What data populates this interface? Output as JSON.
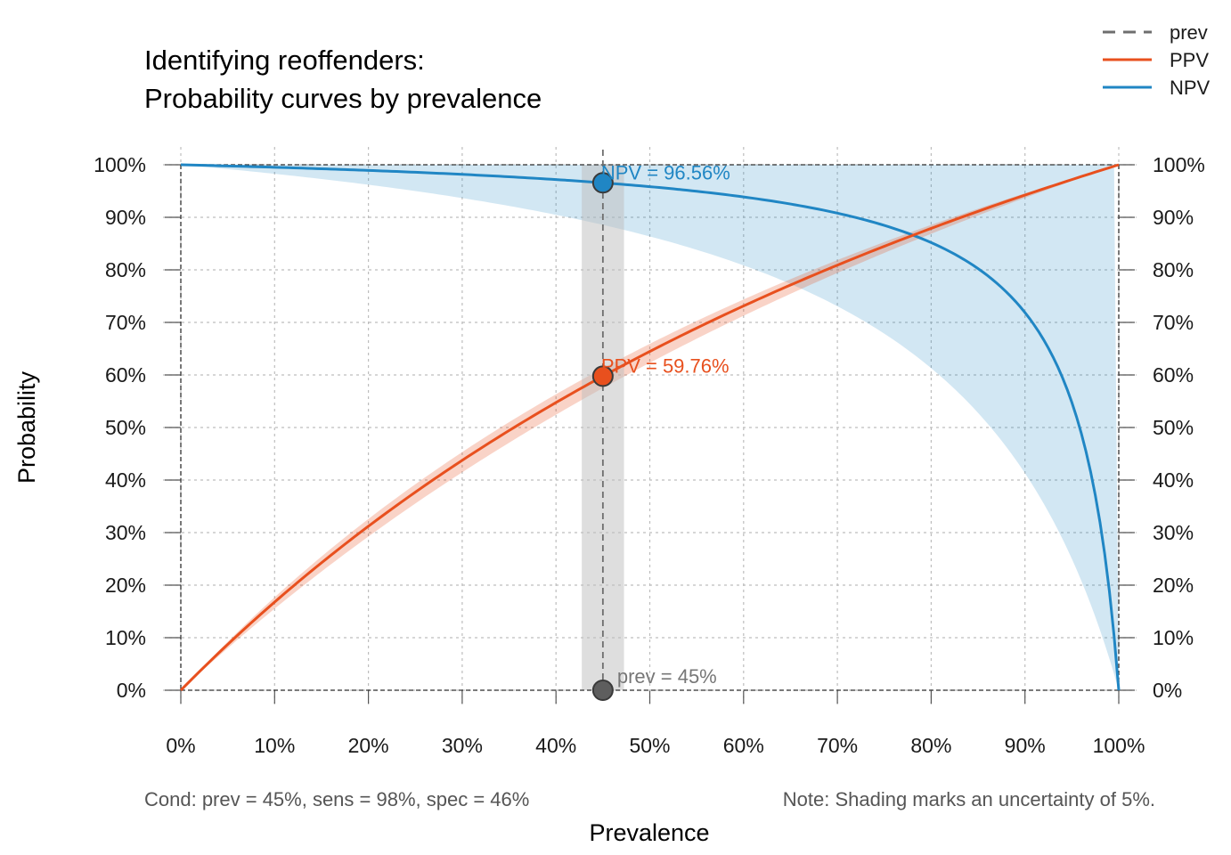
{
  "chart_data": {
    "type": "line",
    "title_line1": "Identifying reoffenders:",
    "title_line2": "Probability curves by prevalence",
    "xlabel": "Prevalence",
    "ylabel": "Probability",
    "xlim": [
      0,
      100
    ],
    "ylim": [
      0,
      100
    ],
    "x_ticks": [
      "0%",
      "10%",
      "20%",
      "30%",
      "40%",
      "50%",
      "60%",
      "70%",
      "80%",
      "90%",
      "100%"
    ],
    "y_ticks": [
      "0%",
      "10%",
      "20%",
      "30%",
      "40%",
      "50%",
      "60%",
      "70%",
      "80%",
      "90%",
      "100%"
    ],
    "grid": true,
    "legend_position": "top-right",
    "conditions": {
      "prev": 0.45,
      "sens": 0.98,
      "spec": 0.46,
      "uncertainty": 0.05
    },
    "series": [
      {
        "name": "prev",
        "style": "dashed",
        "color": "#6e6e6e"
      },
      {
        "name": "PPV",
        "style": "solid",
        "color": "#e8501e",
        "x": [
          0,
          10,
          20,
          30,
          40,
          45,
          50,
          60,
          70,
          80,
          90,
          100
        ],
        "values": [
          0,
          16.77,
          31.21,
          43.75,
          54.75,
          59.76,
          64.47,
          73.13,
          80.9,
          87.89,
          94.23,
          100
        ]
      },
      {
        "name": "NPV",
        "style": "solid",
        "color": "#2086c4",
        "x": [
          0,
          10,
          20,
          30,
          40,
          45,
          50,
          60,
          70,
          80,
          90,
          100
        ],
        "values": [
          100,
          99.52,
          98.91,
          98.13,
          97.11,
          96.56,
          95.83,
          93.87,
          90.75,
          85.19,
          71.88,
          0
        ]
      }
    ],
    "annotations": {
      "npv": "NPV = 96.56%",
      "ppv": "PPV = 59.76%",
      "prev": "prev = 45%"
    },
    "footnote_cond": "Cond:  prev = 45%, sens = 98%, spec = 46%",
    "footnote_note": "Note:  Shading marks an uncertainty of 5%."
  }
}
